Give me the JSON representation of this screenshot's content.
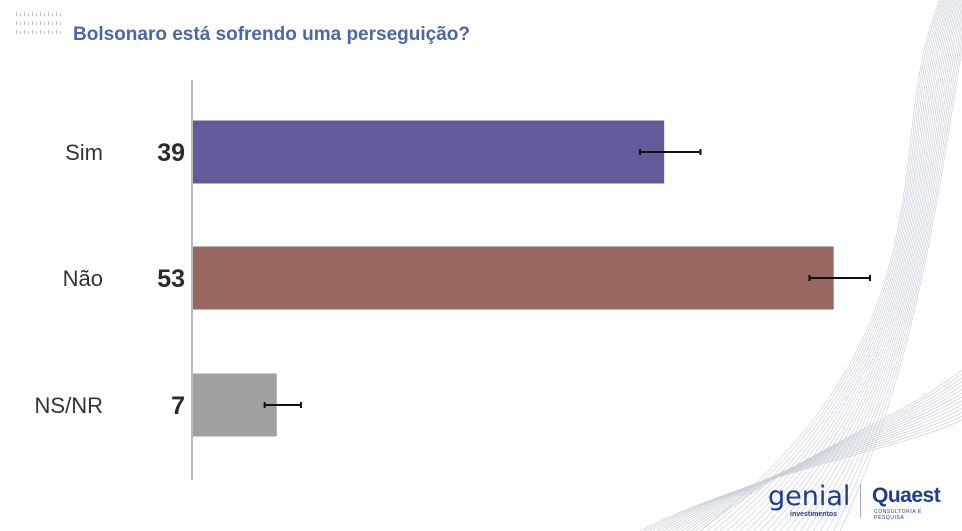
{
  "title": "Bolsonaro está sofrendo uma perseguição?",
  "colors": {
    "title": "#4a67a8",
    "sim": "#625c9a",
    "nao": "#986761",
    "nsnr": "#a0a0a0"
  },
  "logos": {
    "genial": {
      "word": "genial",
      "sub": "investimentos"
    },
    "quaest": {
      "word": "Quaest",
      "sub": "CONSULTORIA E PESQUISA"
    }
  },
  "chart_data": {
    "type": "bar",
    "orientation": "horizontal",
    "title": "Bolsonaro está sofrendo uma perseguição?",
    "categories": [
      "Sim",
      "Não",
      "NS/NR"
    ],
    "values": [
      39,
      53,
      7
    ],
    "value_labels": [
      "39",
      "53",
      "7"
    ],
    "error_bars": [
      [
        37,
        42
      ],
      [
        51,
        56
      ],
      [
        6,
        9
      ]
    ],
    "xlim": [
      0,
      56
    ],
    "grid": false,
    "legend": "none"
  }
}
